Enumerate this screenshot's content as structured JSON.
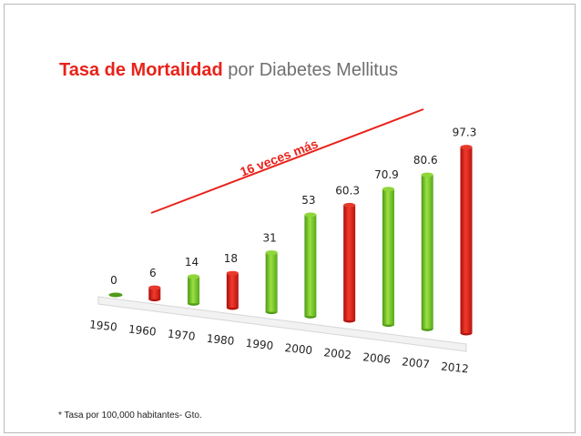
{
  "slide": {
    "title_highlight": "Tasa de Mortalidad",
    "title_rest": " por Diabetes Mellitus",
    "footnote": "* Tasa por 100,000 habitantes- Gto."
  },
  "colors": {
    "accent": "#e8221a",
    "green": "#7ed321",
    "red": "#e8221a",
    "title_gray": "#707070"
  },
  "chart_data": {
    "type": "bar",
    "title": "Tasa de Mortalidad por Diabetes Mellitus",
    "categories": [
      "1950",
      "1960",
      "1970",
      "1980",
      "1990",
      "2000",
      "2002",
      "2006",
      "2007",
      "2012"
    ],
    "values": [
      0,
      6,
      14,
      18,
      31,
      53,
      60.3,
      70.9,
      80.6,
      97.3
    ],
    "value_labels": [
      "0",
      "6",
      "14",
      "18",
      "31",
      "53",
      "60.3",
      "70.9",
      "80.6",
      "97.3"
    ],
    "bar_colors": [
      "green",
      "red",
      "green",
      "red",
      "green",
      "green",
      "red",
      "green",
      "green",
      "red"
    ],
    "ylim": [
      0,
      100
    ],
    "xlabel": "",
    "ylabel": "",
    "grid": false,
    "annotation": "16 veces más"
  }
}
